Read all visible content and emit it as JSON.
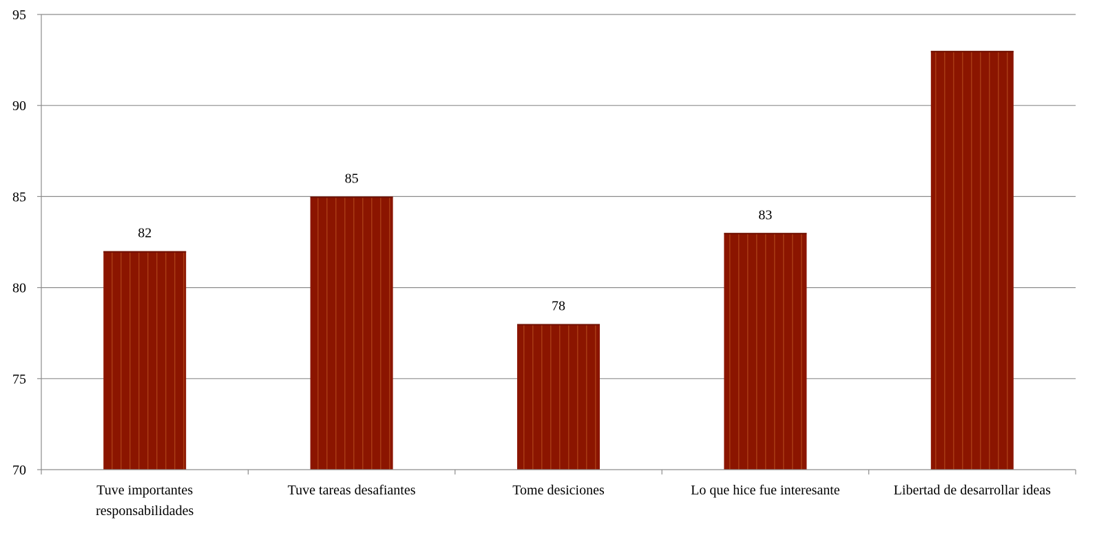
{
  "chart_data": {
    "type": "bar",
    "title": "",
    "xlabel": "",
    "ylabel": "",
    "categories": [
      [
        "Tuve importantes",
        "responsabilidades"
      ],
      [
        "Tuve tareas desafiantes"
      ],
      [
        "Tome desiciones"
      ],
      [
        "Lo que hice fue interesante"
      ],
      [
        "Libertad de desarrollar ideas"
      ]
    ],
    "values": [
      82,
      85,
      78,
      83,
      93
    ],
    "data_labels": [
      "82",
      "85",
      "78",
      "83",
      ""
    ],
    "ylim": [
      70,
      95
    ],
    "yticks": [
      70,
      75,
      80,
      85,
      90,
      95
    ],
    "grid": true,
    "legend": "none",
    "colors": {
      "bar": "#8b1500",
      "bar_stripe": "#a83a14",
      "grid": "#8c8c8c",
      "axis": "#8c8c8c"
    }
  }
}
